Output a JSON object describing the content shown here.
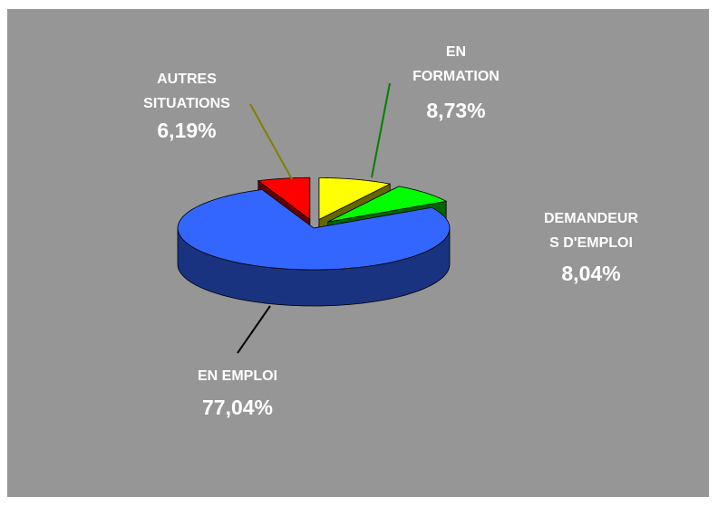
{
  "chart_data": {
    "type": "pie",
    "categories": [
      "EN\nFORMATION",
      "DEMANDEUR\nS D'EMPLOI",
      "EN EMPLOI",
      "AUTRES\nSITUATIONS"
    ],
    "values": [
      8.73,
      8.04,
      77.04,
      6.19
    ],
    "value_labels": [
      "8,73%",
      "8,04%",
      "77,04%",
      "6,19%"
    ],
    "colors": [
      "#ffff00",
      "#00ff00",
      "#3366ff",
      "#ff0000"
    ]
  }
}
